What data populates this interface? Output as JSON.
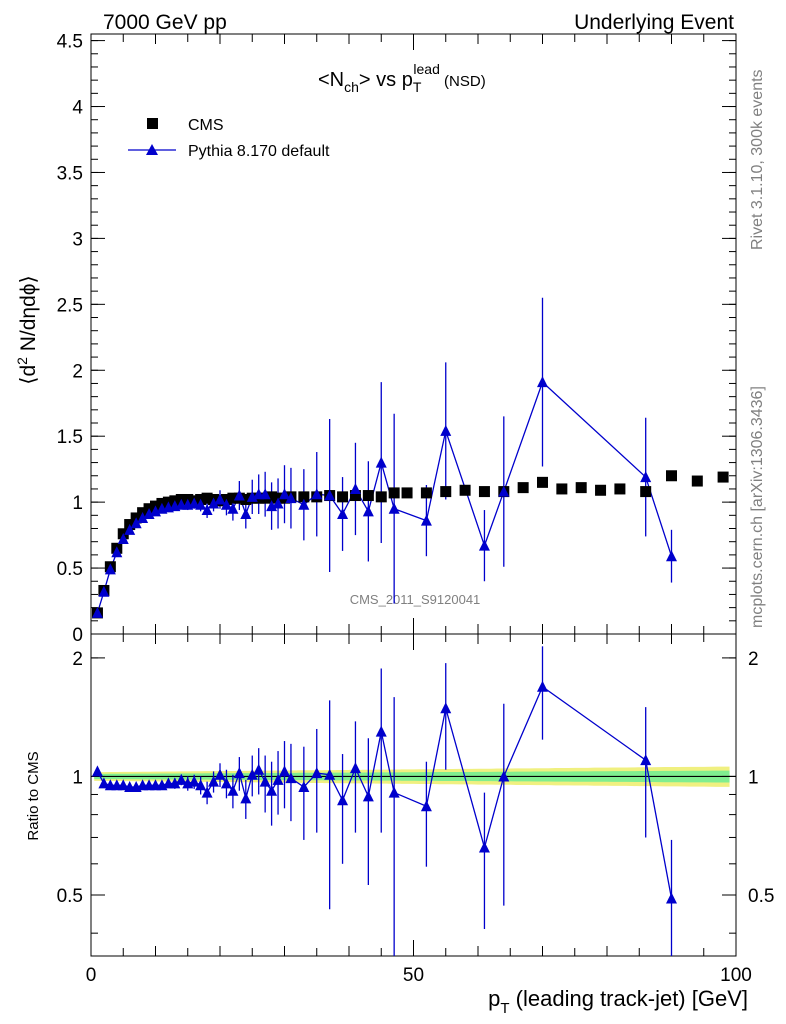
{
  "header": {
    "left": "7000 GeV pp",
    "right": "Underlying Event"
  },
  "side_labels": {
    "top": "Rivet 3.1.10,  300k events",
    "bottom": "mcplots.cern.ch [arXiv:1306.3436]"
  },
  "watermark": "CMS_2011_S9120041",
  "chart_data": [
    {
      "type": "scatter",
      "title": "<Nch> vs pTlead (NSD)",
      "title_parts": {
        "a": "<N",
        "ch_sub": "ch",
        "b": "> vs p",
        "t_sub": "T",
        "lead_sup": "lead",
        "nsd": " (NSD)"
      },
      "ylabel": "⟨d² N/dηdϕ⟩",
      "ylabel_parts": {
        "a": "⟨d",
        "sup": "2",
        "b": " N/dηdϕ⟩"
      },
      "xlim": [
        0,
        100
      ],
      "ylim": [
        0,
        4.55
      ],
      "yticks": [
        "0",
        "0.5",
        "1",
        "1.5",
        "2",
        "2.5",
        "3",
        "3.5",
        "4",
        "4.5"
      ],
      "legend_position": "top-left",
      "series": [
        {
          "name": "CMS",
          "color": "#000000",
          "marker": "square",
          "x": [
            1,
            2,
            3,
            4,
            5,
            6,
            7,
            8,
            9,
            10,
            11,
            12,
            13,
            14,
            15,
            16,
            17,
            18,
            19,
            20,
            21,
            22,
            23,
            24,
            25,
            26,
            27,
            28,
            29,
            30,
            31,
            33,
            35,
            37,
            39,
            41,
            43,
            45,
            47,
            49,
            52,
            55,
            58,
            61,
            64,
            67,
            70,
            73,
            76,
            79,
            82,
            86,
            90,
            94,
            98
          ],
          "y": [
            0.16,
            0.33,
            0.51,
            0.65,
            0.76,
            0.83,
            0.88,
            0.92,
            0.95,
            0.97,
            0.99,
            1.0,
            1.01,
            1.02,
            1.02,
            1.01,
            1.02,
            1.03,
            1.02,
            1.01,
            1.02,
            1.03,
            1.03,
            1.02,
            1.03,
            1.03,
            1.03,
            1.04,
            1.03,
            1.03,
            1.04,
            1.04,
            1.04,
            1.05,
            1.04,
            1.05,
            1.05,
            1.04,
            1.07,
            1.07,
            1.07,
            1.08,
            1.09,
            1.08,
            1.08,
            1.11,
            1.15,
            1.1,
            1.11,
            1.09,
            1.1,
            1.08,
            1.2,
            1.16,
            1.19
          ]
        },
        {
          "name": "Pythia 8.170 default",
          "color": "#0000cc",
          "marker": "triangle",
          "x": [
            1,
            2,
            3,
            4,
            5,
            6,
            7,
            8,
            9,
            10,
            11,
            12,
            13,
            14,
            15,
            16,
            17,
            18,
            19,
            20,
            21,
            22,
            23,
            24,
            25,
            26,
            27,
            28,
            29,
            30,
            31,
            33,
            35,
            37,
            39,
            41,
            43,
            45,
            47,
            52,
            55,
            61,
            64,
            70,
            86,
            90
          ],
          "y": [
            0.16,
            0.32,
            0.49,
            0.62,
            0.72,
            0.79,
            0.84,
            0.88,
            0.91,
            0.93,
            0.95,
            0.96,
            0.97,
            0.98,
            0.98,
            0.99,
            0.98,
            0.94,
            0.99,
            1.02,
            0.98,
            0.95,
            1.05,
            0.91,
            1.04,
            1.06,
            1.06,
            0.97,
            0.99,
            1.06,
            1.03,
            0.98,
            1.06,
            1.05,
            0.91,
            1.1,
            0.93,
            1.3,
            0.95,
            0.86,
            1.54,
            0.67,
            1.08,
            1.91,
            1.19,
            0.59
          ],
          "yerr": [
            0.01,
            0.01,
            0.01,
            0.01,
            0.01,
            0.01,
            0.01,
            0.01,
            0.02,
            0.02,
            0.02,
            0.03,
            0.03,
            0.03,
            0.04,
            0.04,
            0.05,
            0.06,
            0.06,
            0.07,
            0.08,
            0.09,
            0.11,
            0.11,
            0.13,
            0.15,
            0.17,
            0.18,
            0.19,
            0.22,
            0.23,
            0.27,
            0.32,
            0.58,
            0.28,
            0.35,
            0.38,
            0.61,
            0.72,
            0.27,
            0.52,
            0.27,
            0.57,
            0.64,
            0.45,
            0.2
          ]
        }
      ]
    },
    {
      "type": "scatter",
      "title": "",
      "xlabel": "pT (leading track-jet) [GeV]",
      "xlabel_parts": {
        "p": "p",
        "sub": "T",
        "rest": " (leading track-jet) [GeV]"
      },
      "ylabel": "Ratio to CMS",
      "xlim": [
        0,
        100
      ],
      "ylim": [
        0.35,
        2.3
      ],
      "log_y": true,
      "xticks": [
        "0",
        "50",
        "100"
      ],
      "yticks": [
        "0.5",
        "1",
        "2"
      ],
      "series": [
        {
          "name": "Pythia 8.170 default",
          "color": "#0000cc",
          "x": [
            1,
            2,
            3,
            4,
            5,
            6,
            7,
            8,
            9,
            10,
            11,
            12,
            13,
            14,
            15,
            16,
            17,
            18,
            19,
            20,
            21,
            22,
            23,
            24,
            25,
            26,
            27,
            28,
            29,
            30,
            31,
            33,
            35,
            37,
            39,
            41,
            43,
            45,
            47,
            52,
            55,
            61,
            64,
            70,
            86,
            90
          ],
          "y": [
            1.03,
            0.96,
            0.95,
            0.95,
            0.95,
            0.94,
            0.94,
            0.95,
            0.95,
            0.95,
            0.95,
            0.96,
            0.96,
            0.98,
            0.96,
            0.97,
            0.95,
            0.91,
            0.97,
            1.01,
            0.96,
            0.92,
            1.02,
            0.88,
            1.01,
            1.04,
            0.97,
            0.92,
            0.98,
            1.03,
            0.99,
            0.94,
            1.02,
            1.01,
            0.87,
            1.05,
            0.89,
            1.3,
            0.91,
            0.84,
            1.49,
            0.66,
            1.0,
            1.69,
            1.1,
            0.49
          ],
          "yerr": [
            0.01,
            0.01,
            0.01,
            0.01,
            0.01,
            0.01,
            0.01,
            0.01,
            0.02,
            0.02,
            0.02,
            0.02,
            0.03,
            0.03,
            0.04,
            0.04,
            0.05,
            0.06,
            0.06,
            0.07,
            0.08,
            0.09,
            0.1,
            0.1,
            0.12,
            0.14,
            0.16,
            0.17,
            0.18,
            0.2,
            0.22,
            0.25,
            0.3,
            0.55,
            0.27,
            0.33,
            0.36,
            0.58,
            0.68,
            0.25,
            0.45,
            0.25,
            0.53,
            0.45,
            0.4,
            0.2
          ]
        }
      ],
      "reference_line": 1.0,
      "bands": {
        "inner_color": "#80ee90",
        "outer_color": "#f0f080"
      }
    }
  ]
}
